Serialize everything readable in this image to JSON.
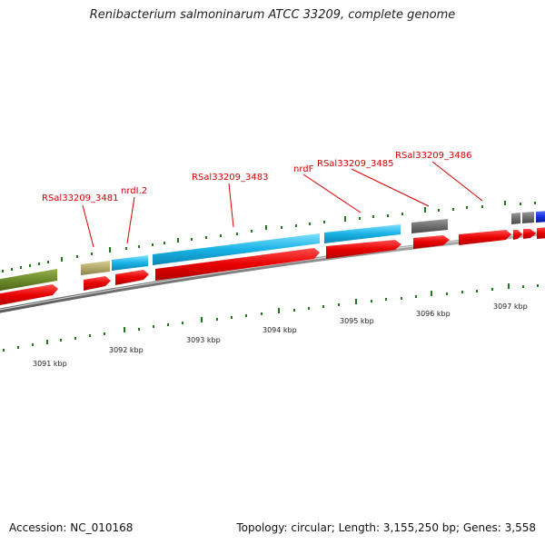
{
  "title": "Renibacterium salmoninarum ATCC 33209, complete genome",
  "footer": {
    "accession": "Accession: NC_010168",
    "info": "Topology: circular; Length: 3,155,250 bp; Genes: 3,558"
  },
  "colors": {
    "gene_red": "#e60000",
    "gene_blue": "#1ab2e6",
    "gene_olive": "#6b8a2a",
    "gene_khaki": "#b4aa6c",
    "gene_gray": "#6e6e6e",
    "gene_darkblue": "#1230e0",
    "tick_green": "#1f7a1f",
    "label_red": "#d40000",
    "backbone": "#808080"
  },
  "gene_labels": [
    "RSal33209_3481",
    "nrdI.2",
    "RSal33209_3483",
    "nrdF",
    "RSal33209_3485",
    "RSal33209_3486"
  ],
  "kbp_ticks": [
    "3091 kbp",
    "3092 kbp",
    "3093 kbp",
    "3094 kbp",
    "3095 kbp",
    "3096 kbp",
    "3097 kbp"
  ]
}
